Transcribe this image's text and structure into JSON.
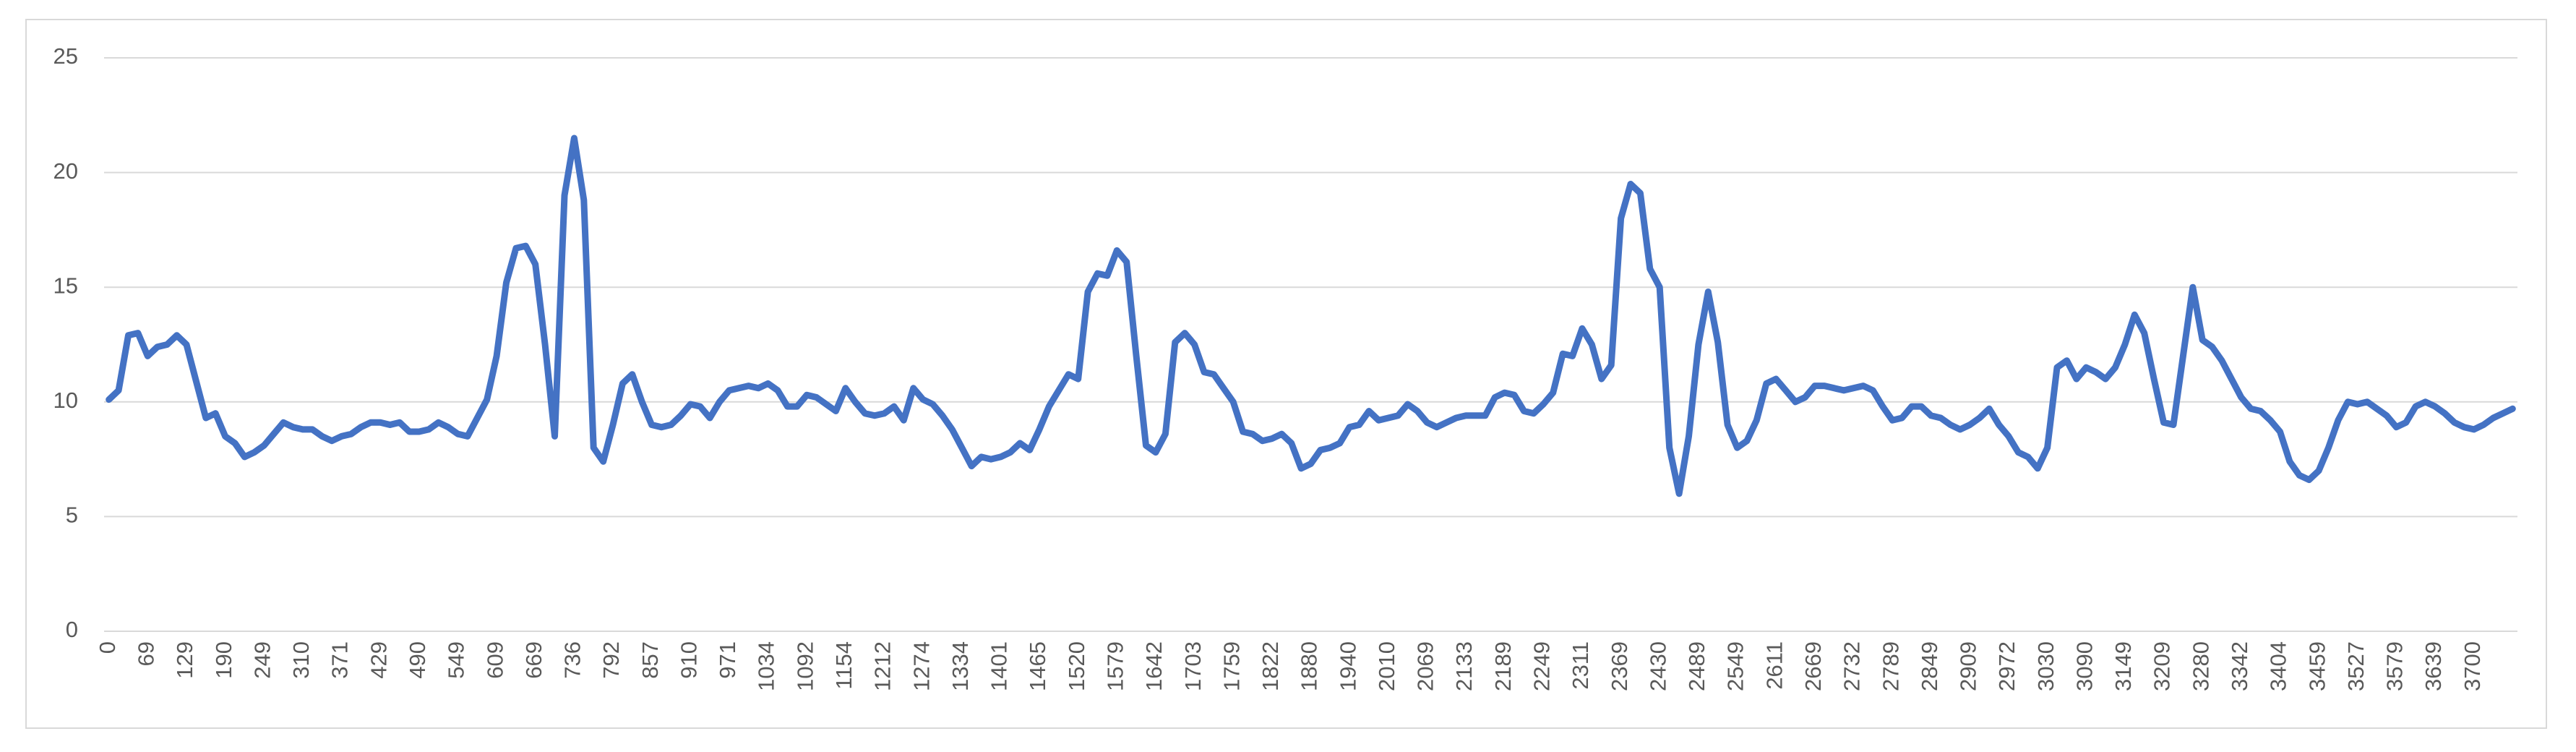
{
  "chart_data": {
    "type": "line",
    "categories": [
      "0",
      null,
      null,
      null,
      "69",
      null,
      null,
      null,
      "129",
      null,
      null,
      null,
      "190",
      null,
      null,
      null,
      "249",
      null,
      null,
      null,
      "310",
      null,
      null,
      null,
      "371",
      null,
      null,
      null,
      "429",
      null,
      null,
      null,
      "490",
      null,
      null,
      null,
      "549",
      null,
      null,
      null,
      "609",
      null,
      null,
      null,
      "669",
      null,
      null,
      null,
      "736",
      null,
      null,
      null,
      "792",
      null,
      null,
      null,
      "857",
      null,
      null,
      null,
      "910",
      null,
      null,
      null,
      "971",
      null,
      null,
      null,
      "1034",
      null,
      null,
      null,
      "1092",
      null,
      null,
      null,
      "1154",
      null,
      null,
      null,
      "1212",
      null,
      null,
      null,
      "1274",
      null,
      null,
      null,
      "1334",
      null,
      null,
      null,
      "1401",
      null,
      null,
      null,
      "1465",
      null,
      null,
      null,
      "1520",
      null,
      null,
      null,
      "1579",
      null,
      null,
      null,
      "1642",
      null,
      null,
      null,
      "1703",
      null,
      null,
      null,
      "1759",
      null,
      null,
      null,
      "1822",
      null,
      null,
      null,
      "1880",
      null,
      null,
      null,
      "1940",
      null,
      null,
      null,
      "2010",
      null,
      null,
      null,
      "2069",
      null,
      null,
      null,
      "2133",
      null,
      null,
      null,
      "2189",
      null,
      null,
      null,
      "2249",
      null,
      null,
      null,
      "2311",
      null,
      null,
      null,
      "2369",
      null,
      null,
      null,
      "2430",
      null,
      null,
      null,
      "2489",
      null,
      null,
      null,
      "2549",
      null,
      null,
      null,
      "2611",
      null,
      null,
      null,
      "2669",
      null,
      null,
      null,
      "2732",
      null,
      null,
      null,
      "2789",
      null,
      null,
      null,
      "2849",
      null,
      null,
      null,
      "2909",
      null,
      null,
      null,
      "2972",
      null,
      null,
      null,
      "3030",
      null,
      null,
      null,
      "3090",
      null,
      null,
      null,
      "3149",
      null,
      null,
      null,
      "3209",
      null,
      null,
      null,
      "3280",
      null,
      null,
      null,
      "3342",
      null,
      null,
      null,
      "3404",
      null,
      null,
      null,
      "3459",
      null,
      null,
      null,
      "3527",
      null,
      null,
      null,
      "3579",
      null,
      null,
      null,
      "3639",
      null,
      null,
      null,
      "3700",
      null,
      null,
      null,
      null
    ],
    "values": [
      10.1,
      10.5,
      12.9,
      13.0,
      12.0,
      12.4,
      12.5,
      12.9,
      12.5,
      10.9,
      9.3,
      9.5,
      8.5,
      8.2,
      7.6,
      7.8,
      8.1,
      8.6,
      9.1,
      8.9,
      8.8,
      8.8,
      8.5,
      8.3,
      8.5,
      8.6,
      8.9,
      9.1,
      9.1,
      9.0,
      9.1,
      8.7,
      8.7,
      8.8,
      9.1,
      8.9,
      8.6,
      8.5,
      9.3,
      10.1,
      12.0,
      15.2,
      16.7,
      16.8,
      16.0,
      12.5,
      8.5,
      19.0,
      21.5,
      18.8,
      8.0,
      7.4,
      9.0,
      10.8,
      11.2,
      10.0,
      9.0,
      8.9,
      9.0,
      9.4,
      9.9,
      9.8,
      9.3,
      10.0,
      10.5,
      10.6,
      10.7,
      10.6,
      10.8,
      10.5,
      9.8,
      9.8,
      10.3,
      10.2,
      9.9,
      9.6,
      10.6,
      10.0,
      9.5,
      9.4,
      9.5,
      9.8,
      9.2,
      10.6,
      10.1,
      9.9,
      9.4,
      8.8,
      8.0,
      7.2,
      7.6,
      7.5,
      7.6,
      7.8,
      8.2,
      7.9,
      8.8,
      9.8,
      10.5,
      11.2,
      11.0,
      14.8,
      15.6,
      15.5,
      16.6,
      16.1,
      12.0,
      8.1,
      7.8,
      8.6,
      12.6,
      13.0,
      12.5,
      11.3,
      11.2,
      10.6,
      10.0,
      8.7,
      8.6,
      8.3,
      8.4,
      8.6,
      8.2,
      7.1,
      7.3,
      7.9,
      8.0,
      8.2,
      8.9,
      9.0,
      9.6,
      9.2,
      9.3,
      9.4,
      9.9,
      9.6,
      9.1,
      8.9,
      9.1,
      9.3,
      9.4,
      9.4,
      9.4,
      10.2,
      10.4,
      10.3,
      9.6,
      9.5,
      9.9,
      10.4,
      12.1,
      12.0,
      13.2,
      12.5,
      11.0,
      11.6,
      18.0,
      19.5,
      19.1,
      15.8,
      15.0,
      8.0,
      6.0,
      8.5,
      12.5,
      14.8,
      12.6,
      9.0,
      8.0,
      8.3,
      9.2,
      10.8,
      11.0,
      10.5,
      10.0,
      10.2,
      10.7,
      10.7,
      10.6,
      10.5,
      10.6,
      10.7,
      10.5,
      9.8,
      9.2,
      9.3,
      9.8,
      9.8,
      9.4,
      9.3,
      9.0,
      8.8,
      9.0,
      9.3,
      9.7,
      9.0,
      8.5,
      7.8,
      7.6,
      7.1,
      8.0,
      11.5,
      11.8,
      11.0,
      11.5,
      11.3,
      11.0,
      11.5,
      12.5,
      13.8,
      13.0,
      11.0,
      9.1,
      9.0,
      12.0,
      15.0,
      12.7,
      12.4,
      11.8,
      11.0,
      10.2,
      9.7,
      9.6,
      9.2,
      8.7,
      7.4,
      6.8,
      6.6,
      7.0,
      8.0,
      9.2,
      10.0,
      9.9,
      10.0,
      9.7,
      9.4,
      8.9,
      9.1,
      9.8,
      10.0,
      9.8,
      9.5,
      9.1,
      8.9,
      8.8,
      9.0,
      9.3,
      9.5,
      9.7
    ],
    "color": "#4472c4",
    "ylim": [
      0,
      25
    ],
    "yticks": [
      0,
      5,
      10,
      15,
      20,
      25
    ],
    "grid": true
  }
}
